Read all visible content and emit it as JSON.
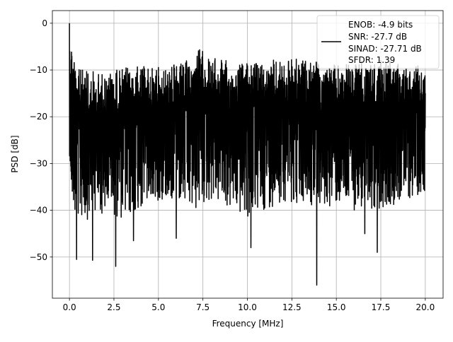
{
  "chart_data": {
    "type": "line",
    "title": "",
    "xlabel": "Frequency [MHz]",
    "ylabel": "PSD [dB]",
    "xlim": [
      -0.96,
      21.0
    ],
    "ylim": [
      -58.8,
      2.7
    ],
    "grid": true,
    "xticks": [
      0,
      2.5,
      5,
      7.5,
      10,
      12.5,
      15,
      17.5,
      20
    ],
    "xtick_labels": [
      "0.0",
      "2.5",
      "5.0",
      "7.5",
      "10.0",
      "12.5",
      "15.0",
      "17.5",
      "20.0"
    ],
    "yticks": [
      0,
      -10,
      -20,
      -30,
      -40,
      -50
    ],
    "ytick_labels": [
      "0",
      "−10",
      "−20",
      "−30",
      "−40",
      "−50"
    ],
    "series": [
      {
        "name": "PSD",
        "color": "#000000",
        "note": "dense noisy spectrum, 0-20 MHz; envelope samples",
        "x": [
          0,
          0.5,
          1,
          2,
          3,
          4,
          5,
          6,
          6.5,
          7,
          7.2,
          8,
          9,
          10,
          11,
          12,
          13,
          14,
          15,
          16,
          17,
          18,
          19,
          20
        ],
        "upper": [
          0,
          -9,
          -10,
          -10,
          -9,
          -9,
          -9,
          -8.5,
          -8,
          -7,
          -4.5,
          -7,
          -8,
          -8,
          -8,
          -7.5,
          -7.5,
          -8,
          -8.5,
          -8,
          -8,
          -8,
          -8.5,
          -9
        ],
        "lower": [
          -38,
          -42,
          -42,
          -41,
          -42,
          -40,
          -38,
          -38,
          -40,
          -41,
          -40,
          -38,
          -40,
          -42,
          -40,
          -38,
          -39,
          -40,
          -39,
          -40,
          -40,
          -39,
          -38,
          -36
        ]
      }
    ],
    "notable_minima": [
      {
        "x": 0.4,
        "y": -50.5
      },
      {
        "x": 1.3,
        "y": -50.7
      },
      {
        "x": 2.6,
        "y": -52.0
      },
      {
        "x": 3.6,
        "y": -46.5
      },
      {
        "x": 6.0,
        "y": -46.0
      },
      {
        "x": 10.2,
        "y": -48.0
      },
      {
        "x": 13.9,
        "y": -56.0
      },
      {
        "x": 16.6,
        "y": -45.0
      },
      {
        "x": 17.3,
        "y": -49.0
      }
    ],
    "legend": {
      "placement": "top-right",
      "entries": [
        "ENOB: -4.9 bits",
        "SNR: -27.7 dB",
        "SINAD: -27.71 dB",
        "SFDR: 1.39"
      ]
    }
  }
}
